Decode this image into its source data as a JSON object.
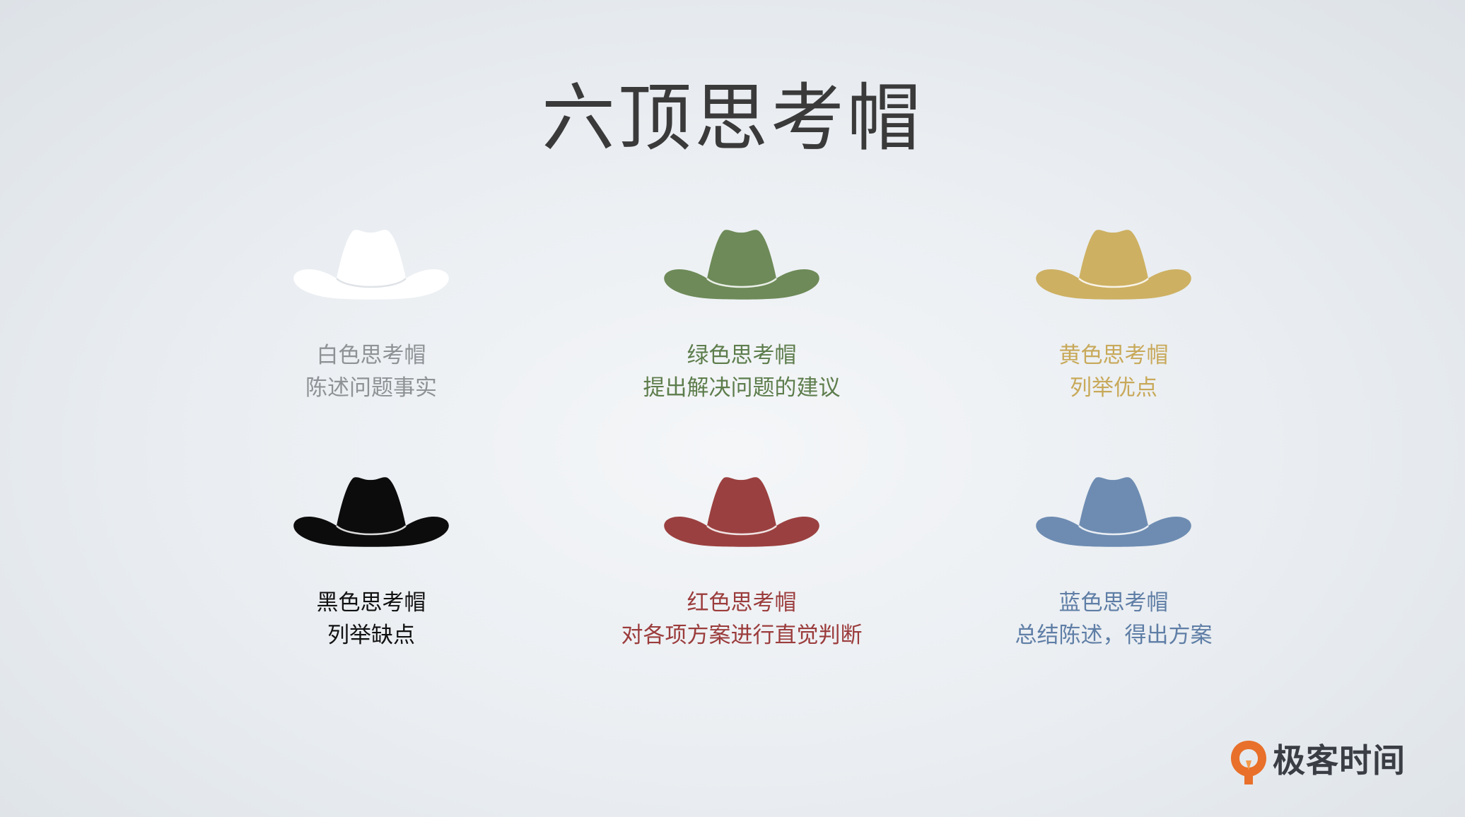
{
  "title": "六顶思考帽",
  "hats": [
    {
      "name": "白色思考帽",
      "desc": "陈述问题事实",
      "hat_color": "#ffffff",
      "text_color": "#8f9295"
    },
    {
      "name": "绿色思考帽",
      "desc": "提出解决问题的建议",
      "hat_color": "#6d8a58",
      "text_color": "#5d7d4c"
    },
    {
      "name": "黄色思考帽",
      "desc": "列举优点",
      "hat_color": "#cdb062",
      "text_color": "#c8a95a"
    },
    {
      "name": "黑色思考帽",
      "desc": "列举缺点",
      "hat_color": "#0c0c0c",
      "text_color": "#111111"
    },
    {
      "name": "红色思考帽",
      "desc": "对各项方案进行直觉判断",
      "hat_color": "#9b4040",
      "text_color": "#9b3c3c"
    },
    {
      "name": "蓝色思考帽",
      "desc": "总结陈述，得出方案",
      "hat_color": "#6e8cb2",
      "text_color": "#5f7ea6"
    }
  ],
  "logo": {
    "text": "极客时间",
    "mark_color": "#e8702a"
  }
}
